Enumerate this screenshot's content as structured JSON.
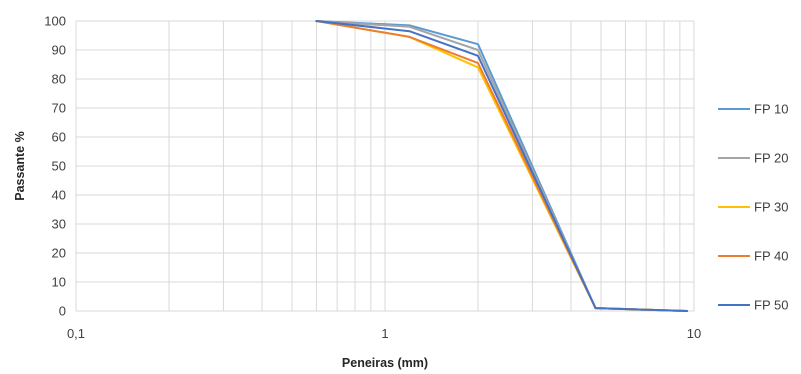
{
  "chart_data": {
    "type": "line",
    "xlabel": "Peneiras (mm)",
    "ylabel": "Passante %",
    "x_scale": "log",
    "xlim": [
      0.1,
      10
    ],
    "ylim": [
      0,
      100
    ],
    "x_ticks": [
      0.1,
      1,
      10
    ],
    "x_tick_labels": [
      "0,1",
      "1",
      "10"
    ],
    "y_ticks": [
      0,
      10,
      20,
      30,
      40,
      50,
      60,
      70,
      80,
      90,
      100
    ],
    "y_tick_labels": [
      "0",
      "10",
      "20",
      "30",
      "40",
      "50",
      "60",
      "70",
      "80",
      "90",
      "100"
    ],
    "grid": true,
    "legend_position": "right",
    "x": [
      0.6,
      1.2,
      2.0,
      4.8,
      9.5
    ],
    "series": [
      {
        "name": "FP 10",
        "color": "#5B9BD5",
        "values": [
          100,
          98.5,
          92,
          1,
          0
        ]
      },
      {
        "name": "FP 20",
        "color": "#A5A5A5",
        "values": [
          100,
          98,
          90,
          1,
          0
        ]
      },
      {
        "name": "FP 30",
        "color": "#FFC000",
        "values": [
          100,
          94.5,
          84,
          1,
          0
        ]
      },
      {
        "name": "FP 40",
        "color": "#ED7D31",
        "values": [
          100,
          94.5,
          85.5,
          1,
          0
        ]
      },
      {
        "name": "FP 50",
        "color": "#4472C4",
        "values": [
          100,
          96.5,
          88,
          1,
          0
        ]
      }
    ]
  }
}
